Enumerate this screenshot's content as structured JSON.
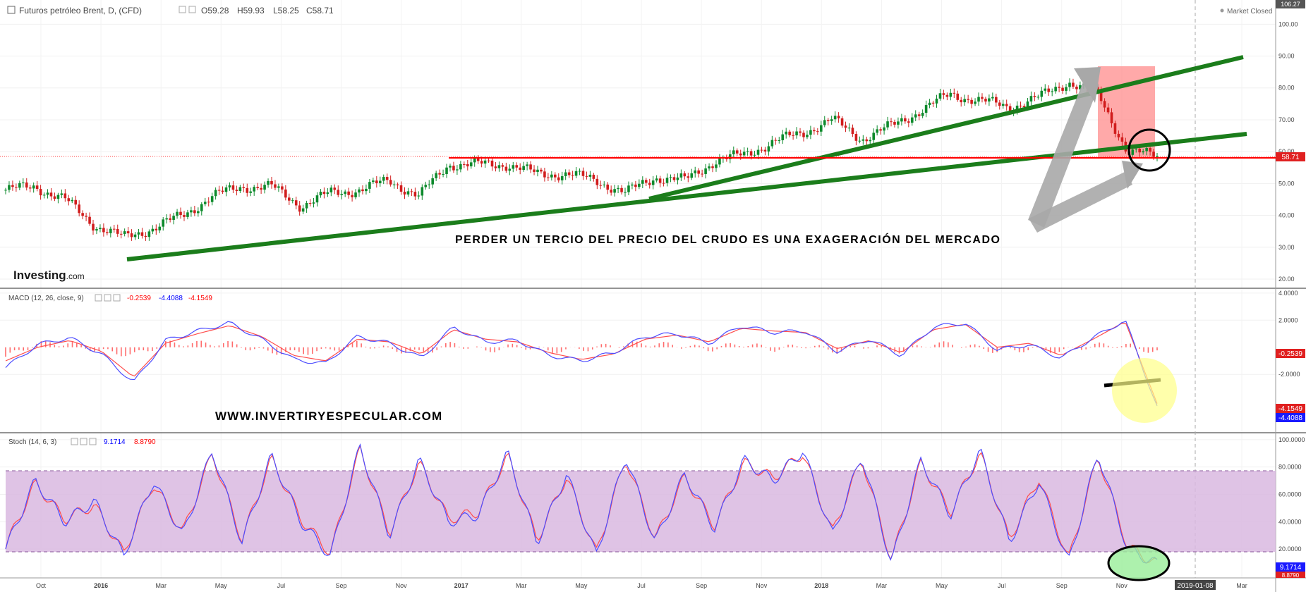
{
  "header": {
    "symbol": "Futuros petróleo Brent, D, (CFD)",
    "open": "O59.28",
    "high": "H59.93",
    "low": "L58.25",
    "close": "C58.71",
    "market_status": "Market Closed",
    "top_scale_label": "106.27"
  },
  "logo": {
    "text": "Investing",
    "suffix": ".com"
  },
  "annotations": {
    "headline": "PERDER UN TERCIO DEL PRECIO DEL CRUDO ES UNA EXAGERACIÓN DEL MERCADO",
    "website": "WWW.INVERTIRYESPECULAR.COM"
  },
  "colors": {
    "up": "#26a69a",
    "down": "#ef5350",
    "candle_up": "#0d8a2c",
    "candle_down": "#d11d1d",
    "trend": "#1b7d1b",
    "support": "#ff0000",
    "macd": "#4d4dff",
    "signal": "#ff4d4d",
    "stoch_band": "#d9b9e0",
    "highlight_zone": "#ff8c8c",
    "arrow": "#a8a8a8",
    "yellow_circle": "#ffff88",
    "green_ellipse": "#99ee99"
  },
  "chart_data": [
    {
      "type": "candlestick",
      "title": "Futuros petróleo Brent, D, (CFD)",
      "y_ticks": [
        "100.00",
        "90.00",
        "80.00",
        "70.00",
        "60.00",
        "50.00",
        "40.00",
        "30.00",
        "20.00"
      ],
      "ylim": [
        18,
        106.27
      ],
      "x_ticks": [
        "Oct",
        "2016",
        "Mar",
        "May",
        "Jul",
        "Sep",
        "Nov",
        "2017",
        "Mar",
        "May",
        "Jul",
        "Sep",
        "Nov",
        "2018",
        "Mar",
        "May",
        "Jul",
        "Sep",
        "Nov",
        "2019-01-08",
        "Mar"
      ],
      "last_price_label": "58.71",
      "last_price": 58.71,
      "series": {
        "x": [
          "2015-09",
          "2015-10",
          "2015-11",
          "2015-12",
          "2016-01",
          "2016-02",
          "2016-03",
          "2016-04",
          "2016-05",
          "2016-06",
          "2016-07",
          "2016-08",
          "2016-09",
          "2016-10",
          "2016-11",
          "2016-12",
          "2017-01",
          "2017-02",
          "2017-03",
          "2017-04",
          "2017-05",
          "2017-06",
          "2017-07",
          "2017-08",
          "2017-09",
          "2017-10",
          "2017-11",
          "2017-12",
          "2018-01",
          "2018-02",
          "2018-03",
          "2018-04",
          "2018-05",
          "2018-06",
          "2018-07",
          "2018-08",
          "2018-09",
          "2018-10",
          "2018-11",
          "2018-12"
        ],
        "close": [
          48,
          49,
          45,
          37,
          33,
          36,
          40,
          46,
          49,
          49,
          43,
          47,
          48,
          51,
          46,
          56,
          56,
          56,
          53,
          53,
          51,
          47,
          52,
          51,
          57,
          59,
          63,
          66,
          70,
          64,
          68,
          73,
          78,
          76,
          74,
          77,
          82,
          78,
          60,
          58.7
        ]
      }
    },
    {
      "type": "line",
      "title": "MACD (12, 26, close, 9)",
      "legend_values": [
        "-0.2539",
        "-4.4088",
        "-4.1549"
      ],
      "y_ticks": [
        "4.0000",
        "2.0000",
        "-2.0000"
      ],
      "ylim": [
        -6.2,
        4.2
      ],
      "value_labels": [
        "-0.2539",
        "-4.1549",
        "-4.4088"
      ],
      "series": [
        {
          "name": "MACD",
          "values": [
            -1.5,
            0.2,
            0.7,
            -0.5,
            -2.6,
            0.5,
            1.2,
            1.8,
            0.6,
            -0.9,
            -1.2,
            0.8,
            0.3,
            -0.8,
            1.5,
            0.4,
            0.5,
            -0.6,
            -1.0,
            -0.4,
            0.8,
            1.0,
            0.3,
            1.6,
            1.1,
            1.2,
            -0.3,
            0.6,
            -0.6,
            1.5,
            1.8,
            -0.2,
            0.2,
            -0.8,
            0.7,
            2.0,
            -4.4
          ]
        },
        {
          "name": "Signal",
          "values": [
            -1.0,
            0.0,
            0.5,
            -0.3,
            -2.2,
            0.3,
            1.0,
            1.6,
            0.8,
            -0.6,
            -1.0,
            0.6,
            0.4,
            -0.5,
            1.3,
            0.6,
            0.4,
            -0.4,
            -0.9,
            -0.5,
            0.6,
            0.9,
            0.4,
            1.4,
            1.2,
            1.1,
            -0.1,
            0.5,
            -0.4,
            1.3,
            1.7,
            0.0,
            0.3,
            -0.6,
            0.6,
            1.9,
            -4.15
          ]
        }
      ]
    },
    {
      "type": "line",
      "title": "Stoch (14, 6, 3)",
      "legend_values": [
        "9.1714",
        "8.8790"
      ],
      "y_ticks": [
        "100.0000",
        "80.0000",
        "60.0000",
        "40.0000",
        "20.0000"
      ],
      "ylim": [
        0,
        103
      ],
      "band": [
        20,
        80
      ],
      "value_labels": [
        "9.1714",
        "8.8790"
      ],
      "series": [
        {
          "name": "%K",
          "values": [
            20,
            70,
            40,
            55,
            15,
            70,
            30,
            92,
            25,
            88,
            40,
            15,
            95,
            30,
            85,
            40,
            45,
            90,
            25,
            75,
            15,
            88,
            25,
            75,
            35,
            85,
            70,
            92,
            30,
            88,
            10,
            85,
            45,
            92,
            25,
            70,
            10,
            90,
            20,
            9.17
          ]
        },
        {
          "name": "%D",
          "values": [
            22,
            68,
            42,
            52,
            17,
            68,
            32,
            90,
            27,
            86,
            42,
            17,
            93,
            32,
            83,
            42,
            47,
            88,
            27,
            73,
            17,
            86,
            27,
            73,
            37,
            83,
            72,
            90,
            32,
            86,
            12,
            83,
            47,
            90,
            27,
            72,
            12,
            88,
            22,
            8.88
          ]
        }
      ]
    }
  ]
}
